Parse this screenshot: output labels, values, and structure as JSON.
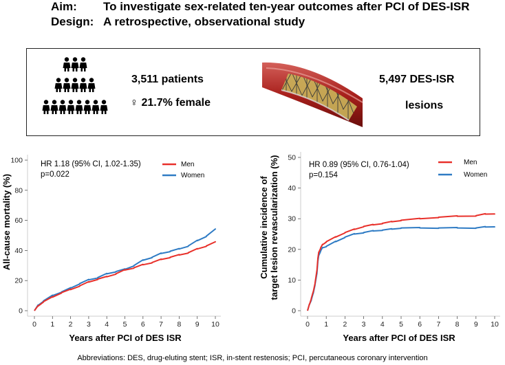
{
  "header": {
    "aim_label": "Aim:",
    "aim_text": "To investigate sex-related ten-year outcomes after PCI of DES-ISR",
    "design_label": "Design:",
    "design_text": "A retrospective, observational study"
  },
  "summary": {
    "patients": "3,511 patients",
    "female_symbol": "♀",
    "female": "21.7% female",
    "lesions_line1": "5,497 DES-ISR",
    "lesions_line2": "lesions",
    "icons": [
      "people-group-icon",
      "stent-icon"
    ]
  },
  "footer": {
    "abbreviations": "Abbreviations: DES, drug-eluting stent; ISR, in-stent restenosis; PCI, percutaneous coronary intervention"
  },
  "chart_data": [
    {
      "type": "line",
      "title": "",
      "xlabel": "Years after PCI of DES ISR",
      "ylabel": "All-cause mortality (%)",
      "xlim": [
        0,
        10
      ],
      "ylim": [
        0,
        100
      ],
      "xticks": [
        0,
        1,
        2,
        3,
        4,
        5,
        6,
        7,
        8,
        9,
        10
      ],
      "yticks": [
        0,
        20,
        40,
        60,
        80,
        100
      ],
      "annotation_line1": "HR 1.18 (95% CI, 1.02-1.35)",
      "annotation_line2": "p=0.022",
      "legend_position": "top-right",
      "series": [
        {
          "name": "Men",
          "color": "#e8302a",
          "x": [
            0,
            0.2,
            0.5,
            1,
            1.5,
            2,
            2.5,
            3,
            3.5,
            4,
            4.5,
            5,
            5.5,
            6,
            6.5,
            7,
            7.5,
            8,
            8.5,
            9,
            9.5,
            10
          ],
          "y": [
            0,
            3,
            6,
            9,
            12,
            14,
            16.5,
            19,
            21,
            22.5,
            24.5,
            27,
            28.5,
            30.5,
            32,
            34,
            35.5,
            37,
            38.5,
            41,
            43,
            45.5
          ]
        },
        {
          "name": "Women",
          "color": "#2e7bc4",
          "x": [
            0,
            0.2,
            0.5,
            1,
            1.5,
            2,
            2.5,
            3,
            3.5,
            4,
            4.5,
            5,
            5.5,
            6,
            6.5,
            7,
            7.5,
            8,
            8.5,
            9,
            9.5,
            10
          ],
          "y": [
            0,
            3.5,
            6.5,
            10,
            12.5,
            15,
            18,
            20.5,
            22,
            24.5,
            26,
            27.5,
            30,
            33.5,
            35.5,
            38,
            39.5,
            41,
            43,
            46.5,
            49.5,
            54
          ]
        }
      ]
    },
    {
      "type": "line",
      "title": "",
      "xlabel": "Years after PCI of DES ISR",
      "ylabel_line1": "Cumulative incidence of",
      "ylabel_line2": "target lesion revascularization (%)",
      "xlim": [
        0,
        10
      ],
      "ylim": [
        0,
        50
      ],
      "xticks": [
        0,
        1,
        2,
        3,
        4,
        5,
        6,
        7,
        8,
        9,
        10
      ],
      "yticks": [
        0,
        10,
        20,
        30,
        40,
        50
      ],
      "annotation_line1": "HR 0.89 (95% CI, 0.76-1.04)",
      "annotation_line2": "p=0.154",
      "legend_position": "top-right",
      "series": [
        {
          "name": "Men",
          "color": "#e8302a",
          "x": [
            0,
            0.1,
            0.2,
            0.3,
            0.4,
            0.5,
            0.55,
            0.6,
            0.7,
            0.8,
            1,
            1.5,
            2,
            2.5,
            3,
            3.5,
            4,
            4.5,
            5,
            6,
            7,
            8,
            9,
            9.5,
            10
          ],
          "y": [
            0,
            2,
            4,
            6,
            9,
            13,
            17,
            19,
            20.5,
            21.5,
            22.5,
            24,
            25.5,
            26.5,
            27.5,
            28,
            28.5,
            29,
            29.5,
            30,
            30.5,
            30.8,
            31,
            31.5,
            31.7
          ]
        },
        {
          "name": "Women",
          "color": "#2e7bc4",
          "x": [
            0,
            0.1,
            0.2,
            0.3,
            0.4,
            0.5,
            0.55,
            0.6,
            0.7,
            0.8,
            1,
            1.5,
            2,
            2.5,
            3,
            3.5,
            4,
            4.5,
            5,
            6,
            7,
            8,
            9,
            9.5,
            10
          ],
          "y": [
            0,
            2,
            3.5,
            5.5,
            8.5,
            12,
            16,
            18,
            19.5,
            20.5,
            21,
            22.5,
            24,
            25,
            25.5,
            26,
            26.3,
            26.6,
            27,
            27,
            27,
            27,
            27,
            27.3,
            27.5
          ]
        }
      ]
    }
  ]
}
